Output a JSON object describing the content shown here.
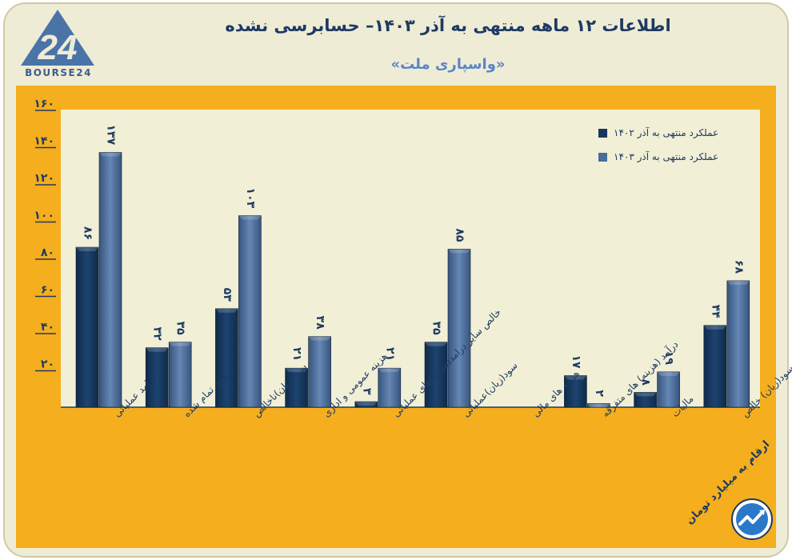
{
  "title": "اطلاعات ۱۲ ماهه منتهی به آذر ۱۴۰۳– حسابرسی نشده",
  "subtitle": "«واسپاری ملت»",
  "logo": {
    "text": "BOURSE24",
    "mark": "24-triangle-logo"
  },
  "note": "ارقام به میلیارد تومان",
  "colors": {
    "series_1402": "#17375e",
    "series_1403": "#4a6d9a",
    "frame": "#f5ae1d",
    "panel": "#f1efd5"
  },
  "chart_data": {
    "type": "bar",
    "title": "اطلاعات ۱۲ ماهه منتهی به آذر ۱۴۰۳– حسابرسی نشده",
    "xlabel": "",
    "ylabel": "",
    "ylim": [
      0,
      160
    ],
    "yticks": [
      20,
      40,
      60,
      80,
      100,
      120,
      140,
      160
    ],
    "ytick_labels": [
      "۲۰",
      "۴۰",
      "۶۰",
      "۸۰",
      "۱۰۰",
      "۱۲۰",
      "۱۴۰",
      "۱۶۰"
    ],
    "legend_position": "top-right",
    "categories": [
      "درامد عملیاتی",
      "بهای تمام شده",
      "سود(زیان)ناخالص",
      "هزینه عمومی و اداری",
      "خالص سایر درامد(هزینه)های عملیاتی",
      "سود(زیان)عملیاتی",
      "هزینه های مالی",
      "درآمد (هزینه) های متفرقه",
      "مالیات",
      "سود(زیان) خالص"
    ],
    "series": [
      {
        "name": "عملکرد منتهی به آذر ۱۴۰۲",
        "values": [
          86,
          32,
          53,
          21,
          3,
          35,
          0,
          17,
          8,
          44
        ],
        "labels": [
          "۸۶",
          "۳۲",
          "۵۳",
          "۲۱",
          "۳",
          "۳۵",
          "",
          "۱۷",
          "۸",
          "۴۴"
        ]
      },
      {
        "name": "عملکرد منتهی به آذر ۱۴۰۳",
        "values": [
          137,
          35,
          103,
          38,
          21,
          85,
          0,
          2,
          19,
          68
        ],
        "labels": [
          "۱۳۷",
          "۳۵",
          "۱۰۳",
          "۳۸",
          "۲۱",
          "۸۵",
          "",
          "۲",
          "۱۹",
          "۶۸"
        ]
      }
    ]
  }
}
